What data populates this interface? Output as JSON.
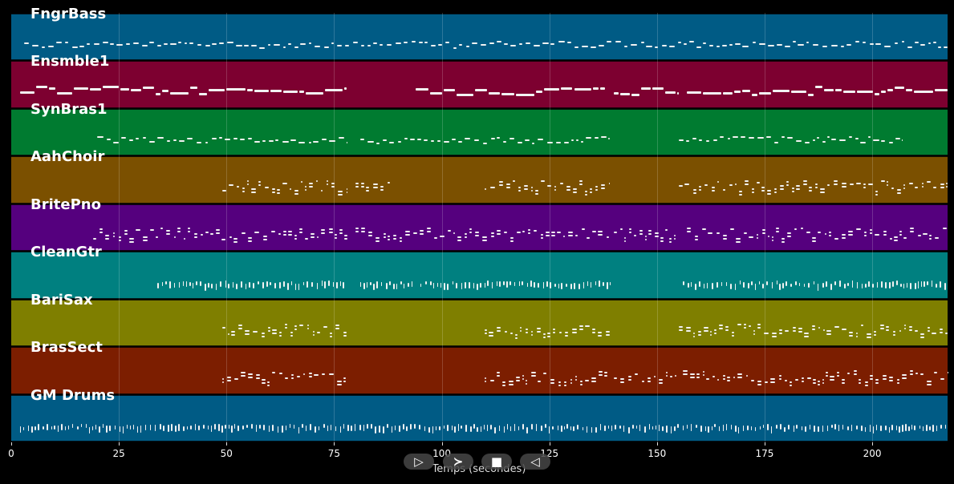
{
  "x_axis": {
    "label": "Temps (secondes)",
    "ticks": [
      "0",
      "25",
      "50",
      "75",
      "100",
      "125",
      "150",
      "175",
      "200"
    ],
    "tick_values": [
      0,
      25,
      50,
      75,
      100,
      125,
      150,
      175,
      200
    ],
    "range": [
      0,
      217.5
    ]
  },
  "tracks": [
    {
      "name": "FngrBass",
      "color": "#005b85",
      "segments": [
        [
          3,
          217.5
        ]
      ],
      "style": "dots"
    },
    {
      "name": "Ensmble1",
      "color": "#7d0030",
      "segments": [
        [
          2,
          78
        ],
        [
          94,
          138
        ],
        [
          140,
          155
        ],
        [
          157,
          217.5
        ]
      ],
      "style": "bars"
    },
    {
      "name": "SynBras1",
      "color": "#007b30",
      "segments": [
        [
          20,
          78
        ],
        [
          81,
          139
        ],
        [
          155,
          207
        ]
      ],
      "style": "dots"
    },
    {
      "name": "AahChoir",
      "color": "#7b5000",
      "segments": [
        [
          49,
          78
        ],
        [
          80,
          88
        ],
        [
          110,
          139
        ],
        [
          155,
          217.5
        ]
      ],
      "style": "chords"
    },
    {
      "name": "BritePno",
      "color": "#55007e",
      "segments": [
        [
          19,
          78
        ],
        [
          80,
          139
        ],
        [
          140,
          155
        ],
        [
          157,
          217.5
        ]
      ],
      "style": "chords"
    },
    {
      "name": "CleanGtr",
      "color": "#008080",
      "segments": [
        [
          34,
          78
        ],
        [
          81,
          94
        ],
        [
          95,
          139
        ],
        [
          156,
          217.5
        ]
      ],
      "style": "ticks"
    },
    {
      "name": "BariSax",
      "color": "#7f7f00",
      "segments": [
        [
          49,
          78
        ],
        [
          110,
          139
        ],
        [
          155,
          217.5
        ]
      ],
      "style": "chords"
    },
    {
      "name": "BrasSect",
      "color": "#7c1e00",
      "segments": [
        [
          49,
          78
        ],
        [
          110,
          139
        ],
        [
          140,
          155
        ],
        [
          156,
          217.5
        ]
      ],
      "style": "chords"
    },
    {
      "name": "GM Drums",
      "color": "#005b85",
      "segments": [
        [
          2,
          217.5
        ]
      ],
      "style": "ticks"
    }
  ],
  "controls": [
    {
      "name": "play-button",
      "glyph": "▷"
    },
    {
      "name": "forward-button",
      "glyph": "≻"
    },
    {
      "name": "stop-button",
      "glyph": "■"
    },
    {
      "name": "rewind-button",
      "glyph": "◁"
    }
  ]
}
